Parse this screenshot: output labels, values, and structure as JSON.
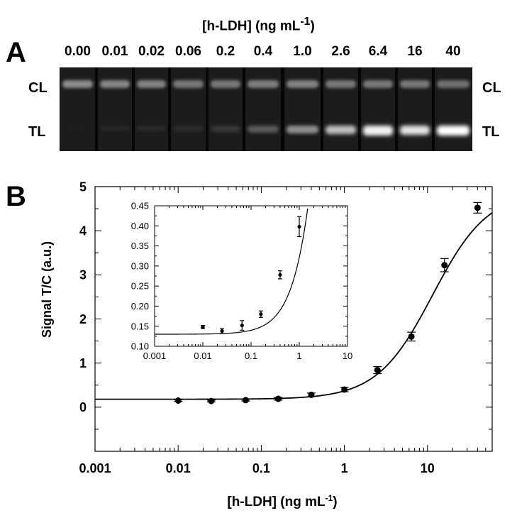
{
  "gel": {
    "title_prefix": "[h-LDH] (ng mL",
    "title_sup": "-1",
    "title_suffix": ")",
    "panel_letter": "A",
    "concentrations": [
      "0.00",
      "0.01",
      "0.02",
      "0.06",
      "0.2",
      "0.4",
      "1.0",
      "2.6",
      "6.4",
      "16",
      "40"
    ],
    "control_line_label": "CL",
    "test_line_label": "TL",
    "control_intensity": [
      0.55,
      0.52,
      0.5,
      0.45,
      0.45,
      0.48,
      0.5,
      0.45,
      0.45,
      0.45,
      0.4
    ],
    "test_intensity": [
      0.0,
      0.05,
      0.06,
      0.07,
      0.12,
      0.28,
      0.5,
      0.72,
      0.95,
      0.88,
      1.0
    ]
  },
  "chart_data": [
    {
      "type": "scatter",
      "panel_letter": "B",
      "xlabel_prefix": "[h-LDH] (ng mL",
      "xlabel_sup": "-1",
      "xlabel_suffix": ")",
      "ylabel": "Signal T/C (a.u.)",
      "xscale": "log",
      "xlim": [
        0.001,
        60
      ],
      "ylim": [
        -1,
        5
      ],
      "xticks": [
        "0.001",
        "0.01",
        "0.1",
        "1",
        "10"
      ],
      "yticks": [
        "0",
        "1",
        "2",
        "3",
        "4",
        "5"
      ],
      "grid": false,
      "legend": "none",
      "x": [
        0.01,
        0.025,
        0.065,
        0.16,
        0.4,
        1.0,
        2.5,
        6.4,
        16,
        40
      ],
      "y": [
        0.15,
        0.14,
        0.16,
        0.19,
        0.28,
        0.4,
        0.84,
        1.6,
        3.22,
        4.52
      ],
      "err": [
        0.02,
        0.02,
        0.02,
        0.03,
        0.04,
        0.05,
        0.08,
        0.1,
        0.15,
        0.12
      ],
      "fit": {
        "type": "4PL",
        "bottom": 0.18,
        "top": 4.9,
        "ec50": 11.5,
        "hill": 1.3
      }
    },
    {
      "type": "scatter",
      "role": "inset",
      "xscale": "log",
      "xlim": [
        0.001,
        10
      ],
      "ylim": [
        0.1,
        0.45
      ],
      "xticks": [
        "0.001",
        "0.01",
        "0.1",
        "1",
        "10"
      ],
      "yticks": [
        "0.10",
        "0.15",
        "0.20",
        "0.25",
        "0.30",
        "0.35",
        "0.40",
        "0.45"
      ],
      "grid": false,
      "x": [
        0.01,
        0.025,
        0.065,
        0.16,
        0.4,
        1.0
      ],
      "y": [
        0.148,
        0.138,
        0.152,
        0.18,
        0.278,
        0.398
      ],
      "err": [
        0.004,
        0.006,
        0.012,
        0.008,
        0.01,
        0.025
      ],
      "fit": {
        "type": "4PL",
        "bottom": 0.13,
        "top": 4.9,
        "ec50": 11.5,
        "hill": 1.3
      }
    }
  ]
}
